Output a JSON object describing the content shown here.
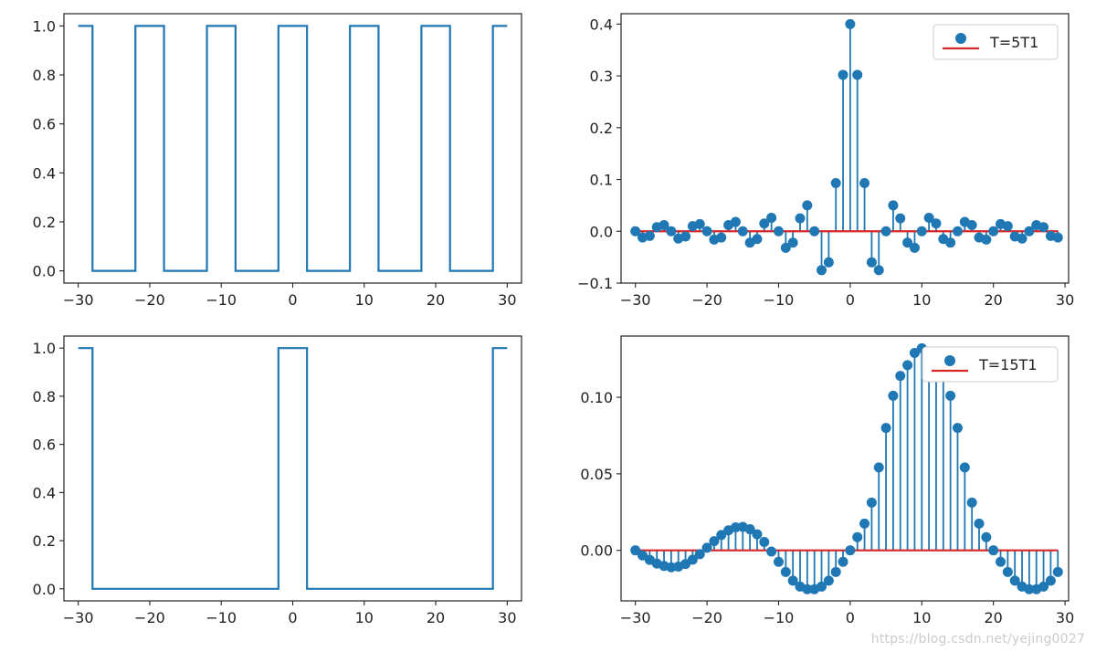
{
  "colors": {
    "signal": "#1f77b4",
    "baseline": "#d62728",
    "axes": "#222222"
  },
  "watermark": "https://blog.csdn.net/yejing0027",
  "chart_data": [
    {
      "type": "line",
      "step": true,
      "x": [
        -30,
        -28,
        -28,
        -22,
        -22,
        -18,
        -18,
        -12,
        -12,
        -8,
        -8,
        -2,
        -2,
        2,
        2,
        8,
        8,
        12,
        12,
        18,
        18,
        22,
        22,
        28,
        28,
        30
      ],
      "y": [
        1,
        1,
        0,
        0,
        1,
        1,
        0,
        0,
        1,
        1,
        0,
        0,
        1,
        1,
        0,
        0,
        1,
        1,
        0,
        0,
        1,
        1,
        0,
        0,
        1,
        1
      ],
      "xlim": [
        -32,
        32
      ],
      "ylim": [
        -0.05,
        1.05
      ],
      "xticks": [
        -30,
        -20,
        -10,
        0,
        10,
        20,
        30
      ],
      "yticks": [
        0.0,
        0.2,
        0.4,
        0.6,
        0.8,
        1.0
      ],
      "xtick_labels": [
        "−30",
        "−20",
        "−10",
        "0",
        "10",
        "20",
        "30"
      ],
      "ytick_labels": [
        "0.0",
        "0.2",
        "0.4",
        "0.6",
        "0.8",
        "1.0"
      ]
    },
    {
      "type": "stem",
      "legend": "T=5T1",
      "legend_loc": "upper right",
      "x": [
        -30,
        -29,
        -28,
        -27,
        -26,
        -25,
        -24,
        -23,
        -22,
        -21,
        -20,
        -19,
        -18,
        -17,
        -16,
        -15,
        -14,
        -13,
        -12,
        -11,
        -10,
        -9,
        -8,
        -7,
        -6,
        -5,
        -4,
        -3,
        -2,
        -1,
        0,
        1,
        2,
        3,
        4,
        5,
        6,
        7,
        8,
        9,
        10,
        11,
        12,
        13,
        14,
        15,
        16,
        17,
        18,
        19,
        20,
        21,
        22,
        23,
        24,
        25,
        26,
        27,
        28,
        29
      ],
      "y": [
        0.0,
        -0.012,
        -0.009,
        0.008,
        0.012,
        0.0,
        -0.014,
        -0.01,
        0.01,
        0.014,
        0.0,
        -0.016,
        -0.012,
        0.012,
        0.018,
        0.0,
        -0.022,
        -0.015,
        0.015,
        0.026,
        0.0,
        -0.032,
        -0.022,
        0.025,
        0.05,
        0.0,
        -0.075,
        -0.06,
        0.093,
        0.302,
        0.4,
        0.302,
        0.093,
        -0.06,
        -0.075,
        0.0,
        0.05,
        0.025,
        -0.022,
        -0.032,
        0.0,
        0.026,
        0.015,
        -0.015,
        -0.022,
        0.0,
        0.018,
        0.012,
        -0.012,
        -0.016,
        0.0,
        0.014,
        0.01,
        -0.01,
        -0.014,
        0.0,
        0.012,
        0.008,
        -0.009,
        -0.012
      ],
      "xlim": [
        -32,
        30.5
      ],
      "ylim": [
        -0.1,
        0.42
      ],
      "xticks": [
        -30,
        -20,
        -10,
        0,
        10,
        20,
        30
      ],
      "yticks": [
        -0.1,
        0.0,
        0.1,
        0.2,
        0.3,
        0.4
      ],
      "xtick_labels": [
        "−30",
        "−20",
        "−10",
        "0",
        "10",
        "20",
        "30"
      ],
      "ytick_labels": [
        "−0.1",
        "0.0",
        "0.1",
        "0.2",
        "0.3",
        "0.4"
      ]
    },
    {
      "type": "line",
      "step": true,
      "x": [
        -30,
        -28,
        -28,
        -2,
        -2,
        2,
        2,
        28,
        28,
        30
      ],
      "y": [
        1,
        1,
        0,
        0,
        1,
        1,
        0,
        0,
        1,
        1
      ],
      "xlim": [
        -32,
        32
      ],
      "ylim": [
        -0.05,
        1.05
      ],
      "xticks": [
        -30,
        -20,
        -10,
        0,
        10,
        20,
        30
      ],
      "yticks": [
        0.0,
        0.2,
        0.4,
        0.6,
        0.8,
        1.0
      ],
      "xtick_labels": [
        "−30",
        "−20",
        "−10",
        "0",
        "10",
        "20",
        "30"
      ],
      "ytick_labels": [
        "0.0",
        "0.2",
        "0.4",
        "0.6",
        "0.8",
        "1.0"
      ]
    },
    {
      "type": "stem",
      "legend": "T=15T1",
      "legend_loc": "upper right",
      "x": [
        -30,
        -29,
        -28,
        -27,
        -26,
        -25,
        -24,
        -23,
        -22,
        -21,
        -20,
        -19,
        -18,
        -17,
        -16,
        -15,
        -14,
        -13,
        -12,
        -11,
        -10,
        -9,
        -8,
        -7,
        -6,
        -5,
        -4,
        -3,
        -2,
        -1,
        0,
        1,
        2,
        3,
        4,
        5,
        6,
        7,
        8,
        9,
        10,
        11,
        12,
        13,
        14,
        15,
        16,
        17,
        18,
        19,
        20,
        21,
        22,
        23,
        24,
        25,
        26,
        27,
        28,
        29
      ],
      "y": [
        0.0,
        -0.0033,
        -0.0062,
        -0.0086,
        -0.0102,
        -0.0111,
        -0.0106,
        -0.0089,
        -0.0061,
        -0.0025,
        0.0017,
        0.006,
        0.01,
        0.0131,
        0.015,
        0.0153,
        0.0138,
        0.0105,
        0.0055,
        -0.0008,
        -0.0075,
        -0.0141,
        -0.0198,
        -0.0237,
        -0.0254,
        -0.0254,
        -0.0237,
        -0.0198,
        -0.0141,
        -0.0075,
        0.0,
        0.0086,
        0.0175,
        0.0312,
        0.0542,
        0.08,
        0.101,
        0.114,
        0.121,
        0.129,
        0.132,
        0.129,
        0.121,
        0.114,
        0.101,
        0.08,
        0.0542,
        0.0312,
        0.0175,
        0.0086,
        0.0,
        -0.0075,
        -0.0141,
        -0.0198,
        -0.0237,
        -0.0254,
        -0.0254,
        -0.0237,
        -0.0198,
        -0.0141
      ],
      "xlim": [
        -32,
        30.5
      ],
      "ylim": [
        -0.033,
        0.14
      ],
      "xticks": [
        -30,
        -20,
        -10,
        0,
        10,
        20,
        30
      ],
      "yticks": [
        0.0,
        0.05,
        0.1
      ],
      "xtick_labels": [
        "−30",
        "−20",
        "−10",
        "0",
        "10",
        "20",
        "30"
      ],
      "ytick_labels": [
        "0.00",
        "0.05",
        "0.10"
      ]
    }
  ]
}
